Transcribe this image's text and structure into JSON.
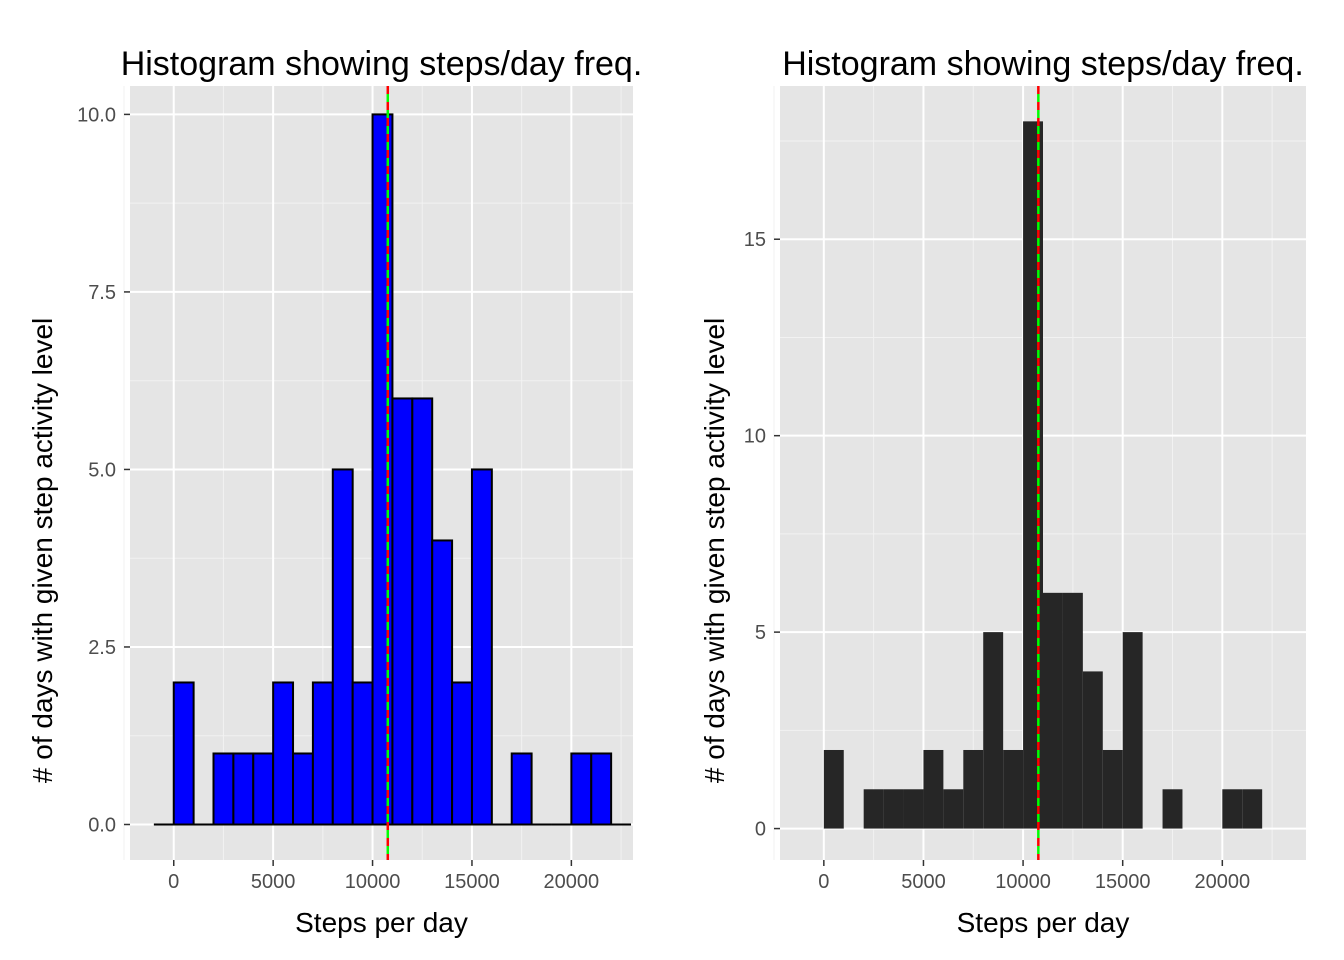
{
  "chart_data": [
    {
      "type": "bar",
      "title": "Histogram showing steps/day freq.",
      "xlabel": "Steps per day",
      "ylabel": "# of days with given step activity level",
      "bin_width": 1000,
      "bin_starts": [
        -1000,
        0,
        1000,
        2000,
        3000,
        4000,
        5000,
        6000,
        7000,
        8000,
        9000,
        10000,
        11000,
        12000,
        13000,
        14000,
        15000,
        16000,
        17000,
        18000,
        19000,
        20000,
        21000,
        22000
      ],
      "values": [
        0,
        2,
        0,
        1,
        1,
        1,
        2,
        1,
        2,
        5,
        2,
        10,
        6,
        6,
        4,
        2,
        5,
        0,
        1,
        0,
        0,
        1,
        1,
        0
      ],
      "xlim": [
        -2200,
        23100
      ],
      "ylim": [
        -0.5,
        10.4
      ],
      "xticks": [
        0,
        5000,
        10000,
        15000,
        20000
      ],
      "xtick_labels": [
        "0",
        "5000",
        "10000",
        "15000",
        "20000"
      ],
      "yticks": [
        0,
        2.5,
        5,
        7.5,
        10
      ],
      "ytick_labels": [
        "0.0",
        "2.5",
        "5.0",
        "7.5",
        "10.0"
      ],
      "bar_fill": "#0000ff",
      "bar_stroke": "#000000",
      "panel_bg": "#e5e5e5",
      "grid": true,
      "reference_lines": [
        {
          "x": 10766,
          "color": "#ff0000",
          "style": "dashed"
        },
        {
          "x": 10766,
          "color": "#00ff00",
          "style": "dashed"
        }
      ]
    },
    {
      "type": "bar",
      "title": "Histogram showing steps/day freq.",
      "xlabel": "Steps per day",
      "ylabel": "# of days with given step activity level",
      "bin_width": 1000,
      "bin_starts": [
        0,
        1000,
        2000,
        3000,
        4000,
        5000,
        6000,
        7000,
        8000,
        9000,
        10000,
        11000,
        12000,
        13000,
        14000,
        15000,
        16000,
        17000,
        18000,
        19000,
        20000,
        21000
      ],
      "values": [
        2,
        0,
        1,
        1,
        1,
        2,
        1,
        2,
        5,
        2,
        18,
        6,
        6,
        4,
        2,
        5,
        0,
        1,
        0,
        0,
        1,
        1
      ],
      "xlim": [
        -2200,
        24200
      ],
      "ylim": [
        -0.8,
        18.9
      ],
      "xticks": [
        0,
        5000,
        10000,
        15000,
        20000
      ],
      "xtick_labels": [
        "0",
        "5000",
        "10000",
        "15000",
        "20000"
      ],
      "yticks": [
        0,
        5,
        10,
        15
      ],
      "ytick_labels": [
        "0",
        "5",
        "10",
        "15"
      ],
      "bar_fill": "#262626",
      "bar_stroke": "none",
      "panel_bg": "#e5e5e5",
      "grid": true,
      "reference_lines": [
        {
          "x": 10766,
          "color": "#ff0000",
          "style": "dashed"
        },
        {
          "x": 10766,
          "color": "#00ff00",
          "style": "dashed"
        }
      ]
    }
  ]
}
